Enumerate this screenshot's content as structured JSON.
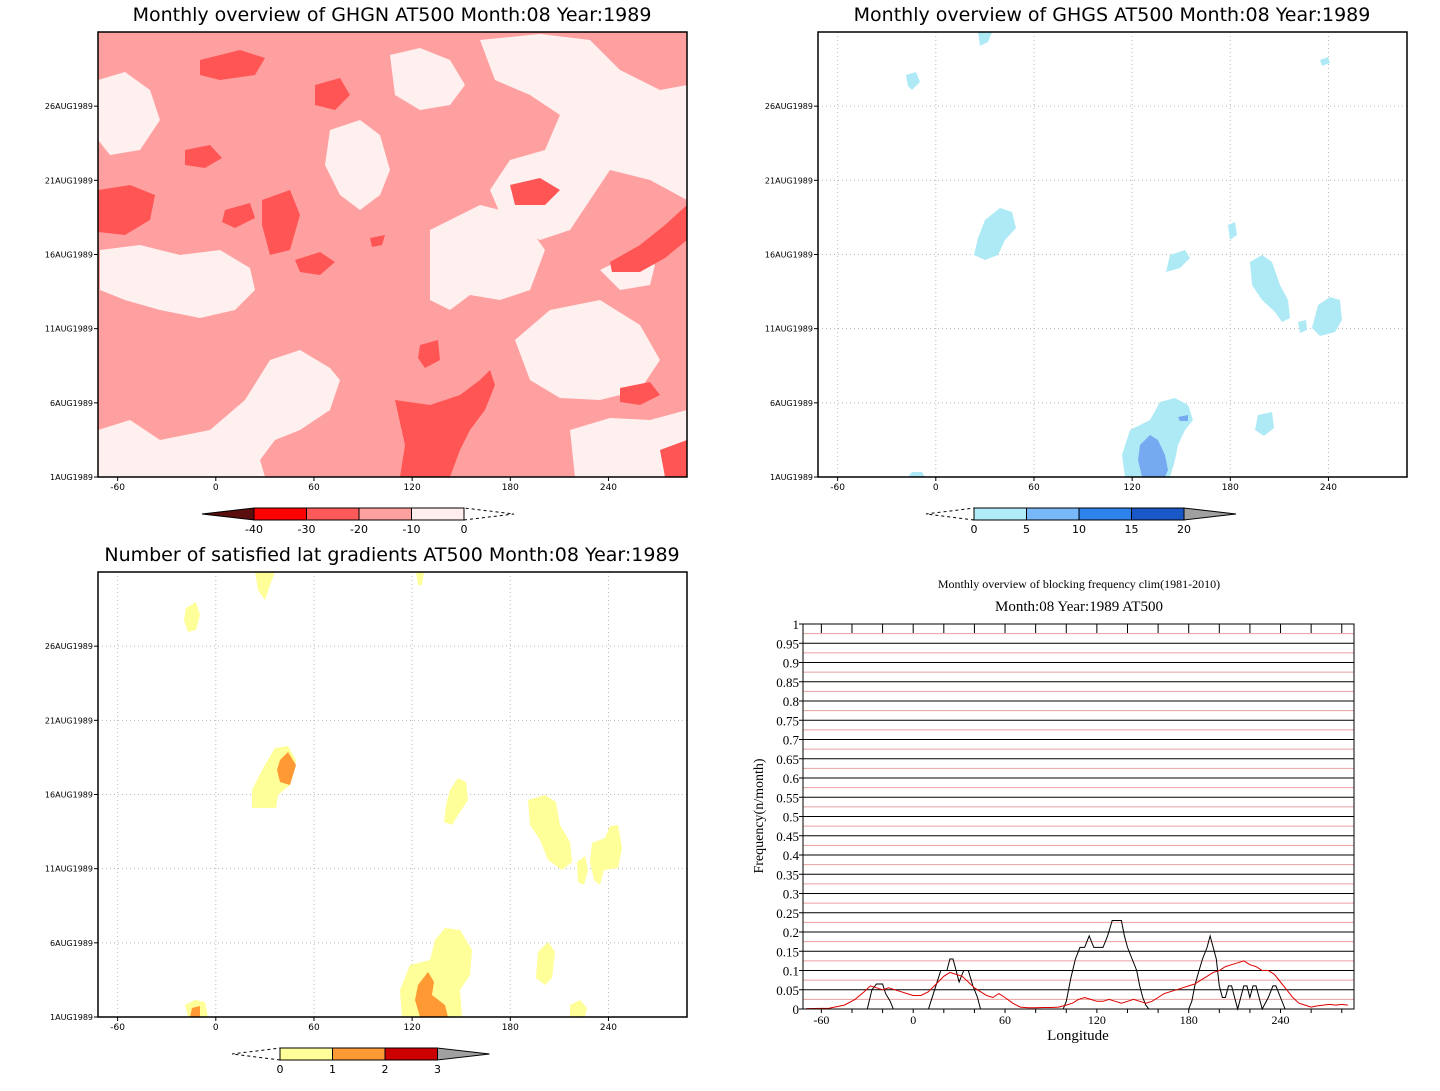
{
  "chart_data": [
    {
      "type": "heatmap",
      "title": "Monthly overview of GHGN AT500 Month:08 Year:1989",
      "x_ticks": [
        "-60",
        "0",
        "60",
        "120",
        "180",
        "240"
      ],
      "y_ticks": [
        "1AUG1989",
        "6AUG1989",
        "11AUG1989",
        "16AUG1989",
        "21AUG1989",
        "26AUG1989"
      ],
      "colorbar": {
        "levels": [
          "-40",
          "-30",
          "-20",
          "-10",
          "0"
        ],
        "colors": [
          "#6e1010",
          "#ff0000",
          "#ff5a5a",
          "#ffa0a0",
          "#ffeeee"
        ],
        "below_color": "#5a0e0e"
      },
      "fill_colors": {
        "light": "#fff0f0",
        "medium": "#ffa0a0",
        "dark": "#ff5555"
      }
    },
    {
      "type": "heatmap",
      "title": "Monthly overview of GHGS AT500 Month:08 Year:1989",
      "x_ticks": [
        "-60",
        "0",
        "60",
        "120",
        "180",
        "240"
      ],
      "y_ticks": [
        "1AUG1989",
        "6AUG1989",
        "11AUG1989",
        "16AUG1989",
        "21AUG1989",
        "26AUG1989"
      ],
      "colorbar": {
        "levels": [
          "0",
          "5",
          "10",
          "15",
          "20"
        ],
        "colors": [
          "#b0ecf8",
          "#78b8f8",
          "#2e82ec",
          "#1a58c8"
        ],
        "above_color": "#a0a0a0"
      },
      "fill_colors": {
        "light": "#aeeaf6",
        "medium": "#76aaf0",
        "dark": "#3a7ee8"
      }
    },
    {
      "type": "heatmap",
      "title": "Number of satisfied lat gradients AT500 Month:08 Year:1989",
      "x_ticks": [
        "-60",
        "0",
        "60",
        "120",
        "180",
        "240"
      ],
      "y_ticks": [
        "1AUG1989",
        "6AUG1989",
        "11AUG1989",
        "16AUG1989",
        "21AUG1989",
        "26AUG1989"
      ],
      "colorbar": {
        "levels": [
          "0",
          "1",
          "2",
          "3"
        ],
        "colors": [
          "#ffff99",
          "#ff9933",
          "#cc0000"
        ],
        "above_color": "#a0a0a0"
      },
      "fill_colors": {
        "one": "#ffff99",
        "two": "#ff9933"
      }
    },
    {
      "type": "line",
      "title": "Monthly overview of blocking frequency clim(1981-2010)",
      "subtitle": "Month:08 Year:1989  AT500",
      "xlabel": "Longitude",
      "ylabel": "Frequency(n/month)",
      "xlim": [
        -72,
        288
      ],
      "ylim": [
        0,
        1
      ],
      "x_ticks": [
        -60,
        0,
        60,
        120,
        180,
        240
      ],
      "y_ticks": [
        "0",
        "0.05",
        "0.1",
        "0.15",
        "0.2",
        "0.25",
        "0.3",
        "0.35",
        "0.4",
        "0.45",
        "0.5",
        "0.55",
        "0.6",
        "0.65",
        "0.7",
        "0.75",
        "0.8",
        "0.85",
        "0.9",
        "0.95",
        "1"
      ],
      "grid": true,
      "series": [
        {
          "color": "#000000",
          "x": [
            -72,
            -30,
            -27,
            -24,
            -20,
            -18,
            -15,
            -13,
            10,
            14,
            18,
            22,
            24,
            26,
            28,
            30,
            33,
            36,
            39,
            42,
            44,
            98,
            100,
            103,
            106,
            109,
            112,
            115,
            118,
            121,
            124,
            127,
            130,
            133,
            136,
            138,
            140,
            143,
            146,
            148,
            150,
            152,
            154,
            180,
            182,
            184,
            186,
            189,
            192,
            194,
            196,
            198,
            200,
            202,
            204,
            206,
            208,
            210,
            212,
            214,
            216,
            218,
            220,
            222,
            224,
            226,
            228,
            232,
            235,
            237,
            240,
            243,
            288
          ],
          "y": [
            0,
            0,
            0.05,
            0.065,
            0.065,
            0.04,
            0.02,
            0,
            0,
            0.05,
            0.1,
            0.1,
            0.13,
            0.13,
            0.1,
            0.07,
            0.1,
            0.1,
            0.06,
            0.03,
            0,
            0,
            0.02,
            0.08,
            0.13,
            0.16,
            0.16,
            0.19,
            0.16,
            0.16,
            0.16,
            0.19,
            0.23,
            0.23,
            0.23,
            0.19,
            0.16,
            0.13,
            0.1,
            0.06,
            0.03,
            0.01,
            0,
            0,
            0.02,
            0.06,
            0.09,
            0.13,
            0.16,
            0.19,
            0.16,
            0.13,
            0.06,
            0.03,
            0.03,
            0.06,
            0.06,
            0.03,
            0,
            0.03,
            0.06,
            0.06,
            0.03,
            0.06,
            0.06,
            0.03,
            0,
            0.03,
            0.06,
            0.06,
            0.03,
            0,
            0
          ]
        },
        {
          "color": "#dd0000",
          "x": [
            -70,
            -55,
            -45,
            -38,
            -32,
            -28,
            -24,
            -20,
            -16,
            -12,
            -8,
            -4,
            0,
            5,
            10,
            15,
            20,
            24,
            28,
            32,
            36,
            40,
            44,
            48,
            52,
            56,
            60,
            65,
            70,
            75,
            80,
            85,
            90,
            95,
            100,
            104,
            108,
            112,
            116,
            120,
            124,
            128,
            132,
            136,
            140,
            144,
            148,
            152,
            156,
            160,
            164,
            168,
            172,
            176,
            180,
            184,
            188,
            192,
            196,
            200,
            204,
            208,
            212,
            216,
            220,
            224,
            228,
            232,
            236,
            240,
            244,
            248,
            252,
            256,
            260,
            264,
            268,
            272,
            276,
            280,
            284
          ],
          "y": [
            0.001,
            0.002,
            0.01,
            0.025,
            0.045,
            0.06,
            0.055,
            0.05,
            0.055,
            0.05,
            0.045,
            0.04,
            0.035,
            0.035,
            0.045,
            0.065,
            0.085,
            0.095,
            0.09,
            0.085,
            0.07,
            0.055,
            0.045,
            0.035,
            0.03,
            0.04,
            0.03,
            0.015,
            0.005,
            0.003,
            0.003,
            0.004,
            0.004,
            0.005,
            0.01,
            0.015,
            0.025,
            0.03,
            0.025,
            0.02,
            0.02,
            0.025,
            0.02,
            0.015,
            0.02,
            0.025,
            0.02,
            0.015,
            0.02,
            0.03,
            0.04,
            0.045,
            0.05,
            0.055,
            0.06,
            0.065,
            0.075,
            0.085,
            0.095,
            0.1,
            0.11,
            0.115,
            0.12,
            0.125,
            0.115,
            0.11,
            0.1,
            0.1,
            0.09,
            0.07,
            0.05,
            0.03,
            0.015,
            0.01,
            0.005,
            0.008,
            0.01,
            0.012,
            0.01,
            0.012,
            0.01
          ]
        }
      ]
    }
  ]
}
